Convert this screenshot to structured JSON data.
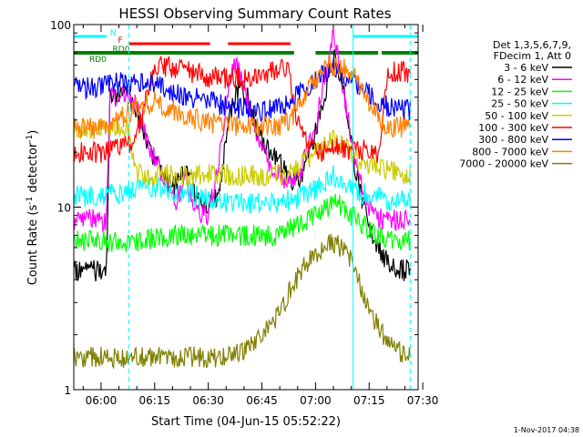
{
  "chart_data": {
    "type": "line",
    "title": "HESSI Observing Summary Count Rates",
    "xlabel": "Start Time (04-Jun-15 05:52:22)",
    "ylabel_main": "Count Rate (s",
    "ylabel_sup1": "-1",
    "ylabel_mid": " detector",
    "ylabel_sup2": "-1",
    "ylabel_end": ")",
    "x_tick_labels": [
      "06:00",
      "06:15",
      "06:30",
      "06:45",
      "07:00",
      "07:15",
      "07:30"
    ],
    "x_tick_minutes": [
      0,
      15,
      30,
      45,
      60,
      75,
      90
    ],
    "xlim_minutes": [
      -7.63,
      88.7
    ],
    "y_scale": "log",
    "ylim": [
      1,
      100
    ],
    "y_tick_labels": [
      "1",
      "10",
      "100"
    ],
    "y_tick_values": [
      1,
      10,
      100
    ],
    "legend_header": [
      "Det 1,3,5,6,7,9,",
      "FDecim 1, Att 0"
    ],
    "legend_placement": "right",
    "timestamp": "1-Nov-2017 04:38",
    "flags": {
      "night_label": "N",
      "flare_label": "F",
      "saa_label": "RD0",
      "night_color": "#00ffff",
      "flare_color": "#ff0000",
      "saa_color": "#008000",
      "night": [
        [
          -7.63,
          1.5
        ],
        [
          70.5,
          88.7
        ]
      ],
      "flare": [
        [
          7.8,
          30.5
        ],
        [
          35.5,
          53.0
        ]
      ],
      "saa": [
        [
          -7.63,
          10.0
        ],
        [
          9.5,
          54.0
        ],
        [
          60.0,
          77.5
        ],
        [
          78.5,
          88.7
        ]
      ],
      "dashed_boundaries": [
        7.8,
        86.5
      ],
      "solid_boundaries": [
        -7.63,
        70.5
      ]
    },
    "series": [
      {
        "name": "3 - 6 keV",
        "color": "#000000",
        "x": [
          -7.5,
          1.5,
          2.5,
          7.8,
          10.0,
          12.0,
          15.0,
          18.0,
          21.0,
          24.0,
          27.0,
          30.0,
          33.0,
          36.0,
          38.0,
          41.0,
          44.0,
          46.0,
          50.0,
          53.0,
          56.0,
          59.0,
          62.0,
          65.0,
          68.0,
          70.0,
          72.5,
          75.0,
          77.5,
          80.0,
          83.0,
          86.5
        ],
        "y": [
          4.5,
          4.5,
          40,
          40,
          33,
          25,
          18,
          14,
          13,
          17,
          11,
          10,
          12,
          32,
          45,
          40,
          25,
          22,
          18,
          14,
          15,
          22,
          36,
          68,
          45,
          22,
          12,
          8,
          6,
          5,
          4.5,
          4.5
        ]
      },
      {
        "name": "6 - 12 keV",
        "color": "#ff00ff",
        "x": [
          -7.5,
          1.5,
          2.5,
          7.8,
          10.0,
          14.0,
          18.0,
          21.0,
          24.0,
          27.0,
          30.0,
          33.0,
          36.0,
          38.0,
          40.0,
          42.0,
          45.0,
          48.0,
          52.0,
          56.0,
          60.0,
          63.0,
          65.0,
          67.0,
          70.0,
          72.5,
          76.0,
          80.0,
          86.5
        ],
        "y": [
          8.5,
          8.5,
          40,
          40,
          35,
          20,
          14,
          11,
          14,
          9,
          9,
          18,
          50,
          62,
          45,
          30,
          22,
          16,
          14,
          16,
          28,
          55,
          85,
          55,
          24,
          14,
          9,
          8.5,
          8.5
        ]
      },
      {
        "name": "12 - 25 keV",
        "color": "#00ff00",
        "x": [
          -7.5,
          5.0,
          10.0,
          20.0,
          30.0,
          40.0,
          50.0,
          55.0,
          60.0,
          63.0,
          66.0,
          70.0,
          75.0,
          80.0,
          86.5
        ],
        "y": [
          6.5,
          6.5,
          6.5,
          7,
          7,
          7,
          7,
          8,
          9,
          10,
          10.5,
          9,
          7.5,
          6.5,
          6.5
        ]
      },
      {
        "name": "25 - 50 keV",
        "color": "#00ffff",
        "x": [
          -7.5,
          0.0,
          6.0,
          12.0,
          18.0,
          24.0,
          30.0,
          36.0,
          42.0,
          48.0,
          54.0,
          58.0,
          62.0,
          65.0,
          68.0,
          72.0,
          76.0,
          80.0,
          86.5
        ],
        "y": [
          11.5,
          11.5,
          12,
          13,
          12.5,
          12,
          11,
          10.5,
          10.5,
          10.5,
          11,
          12,
          13,
          15,
          13,
          12,
          11.5,
          11,
          11
        ]
      },
      {
        "name": "50 - 100 keV",
        "color": "#cccc00",
        "x": [
          -7.5,
          1.5,
          2.5,
          7.8,
          10.0,
          20.0,
          30.0,
          40.0,
          50.0,
          52.0,
          55.0,
          60.0,
          65.0,
          70.0,
          75.0,
          80.0,
          86.5
        ],
        "y": [
          27,
          27,
          27,
          27,
          15,
          15,
          15,
          15,
          15,
          15,
          17,
          20,
          23,
          20,
          17,
          16,
          15
        ]
      },
      {
        "name": "100 - 300 keV",
        "color": "#ff0000",
        "x": [
          -7.5,
          0.0,
          5.0,
          7.8,
          10.0,
          15.0,
          20.0,
          25.0,
          30.0,
          35.0,
          40.0,
          45.0,
          50.0,
          52.0,
          55.0,
          58.0,
          62.0,
          65.0,
          68.0,
          70.0,
          72.5,
          75.0,
          78.0,
          80.0,
          83.0,
          86.5
        ],
        "y": [
          20,
          20,
          22,
          22,
          25,
          60,
          58,
          55,
          52,
          51,
          51,
          53,
          56,
          60,
          30,
          22,
          20,
          22,
          21,
          20,
          20,
          21,
          19,
          55,
          55,
          55
        ]
      },
      {
        "name": "300 - 800 keV",
        "color": "#0000ff",
        "x": [
          -7.5,
          0.0,
          5.0,
          10.0,
          15.0,
          20.0,
          25.0,
          30.0,
          35.0,
          40.0,
          45.0,
          50.0,
          53.0,
          55.0,
          60.0,
          65.0,
          70.0,
          75.0,
          80.0,
          86.5
        ],
        "y": [
          45,
          45,
          48,
          48,
          48,
          43,
          40,
          38,
          36,
          34,
          33,
          35,
          38,
          41,
          50,
          58,
          50,
          42,
          36,
          34
        ]
      },
      {
        "name": "800 - 7000 keV",
        "color": "#ff8000",
        "x": [
          -7.5,
          0.0,
          5.0,
          10.0,
          15.0,
          20.0,
          25.0,
          30.0,
          35.0,
          40.0,
          45.0,
          50.0,
          53.0,
          56.0,
          60.0,
          63.0,
          66.0,
          70.0,
          73.0,
          76.0,
          80.0,
          86.5
        ],
        "y": [
          27,
          27,
          30,
          36,
          38,
          34,
          31,
          29,
          28,
          28,
          28,
          28,
          30,
          38,
          50,
          58,
          60,
          55,
          45,
          35,
          28,
          27
        ]
      },
      {
        "name": "7000 - 20000 keV",
        "color": "#808000",
        "x": [
          -7.5,
          5.0,
          10.0,
          20.0,
          30.0,
          40.0,
          45.0,
          50.0,
          53.0,
          56.0,
          60.0,
          63.0,
          66.0,
          70.0,
          73.0,
          76.0,
          80.0,
          86.5
        ],
        "y": [
          1.5,
          1.5,
          1.5,
          1.5,
          1.5,
          1.6,
          2.0,
          2.6,
          3.5,
          4.5,
          5.6,
          6.3,
          6.3,
          5.0,
          3.5,
          2.5,
          1.8,
          1.5
        ]
      }
    ]
  }
}
